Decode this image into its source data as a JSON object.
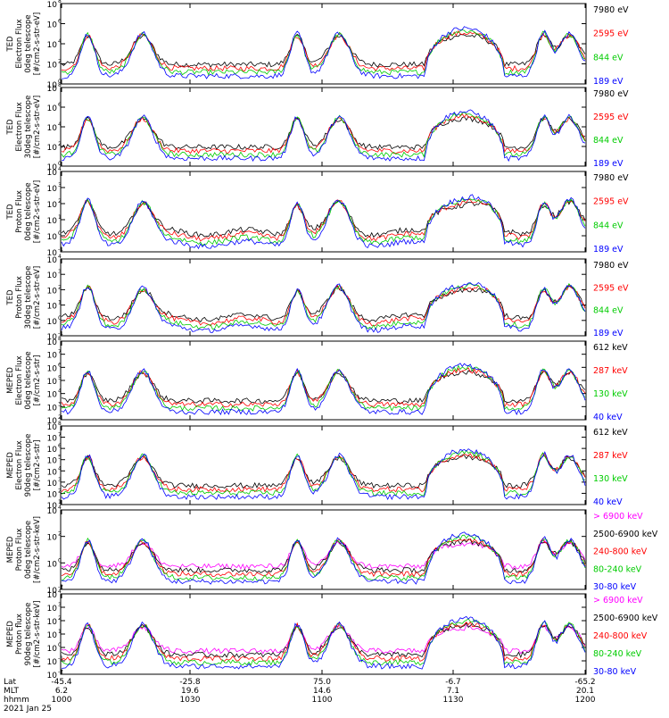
{
  "chart_data": [
    {
      "type": "line",
      "ylabel": [
        "TED",
        "Electron Flux",
        "0deg telescope",
        "[#/cm2-s-str-eV]"
      ],
      "ticks": [
        {
          "l": "10",
          "e": "8"
        },
        {
          "l": "10",
          "e": "6"
        },
        {
          "l": "10",
          "e": "4"
        },
        {
          "l": "10",
          "e": "2"
        },
        {
          "l": "10",
          "e": "0"
        }
      ],
      "series": [
        {
          "name": "7980 eV",
          "color": "#000000"
        },
        {
          "name": "2595 eV",
          "color": "#ff0000"
        },
        {
          "name": "844 eV",
          "color": "#00cc00"
        },
        {
          "name": "189 eV",
          "color": "#0000ff"
        }
      ]
    },
    {
      "type": "line",
      "ylabel": [
        "TED",
        "Electron Flux",
        "30deg telescope",
        "[#/cm2-s-str-eV]"
      ],
      "ticks": [
        {
          "l": "10",
          "e": "8"
        },
        {
          "l": "10",
          "e": "6"
        },
        {
          "l": "10",
          "e": "4"
        },
        {
          "l": "10",
          "e": "2"
        },
        {
          "l": "10",
          "e": "0"
        }
      ],
      "series": [
        {
          "name": "7980 eV",
          "color": "#000000"
        },
        {
          "name": "2595 eV",
          "color": "#ff0000"
        },
        {
          "name": "844 eV",
          "color": "#00cc00"
        },
        {
          "name": "189 eV",
          "color": "#0000ff"
        }
      ]
    },
    {
      "type": "line",
      "ylabel": [
        "TED",
        "Proton Flux",
        "0deg telescope",
        "[#/cm2-s-str-eV]"
      ],
      "ticks": [
        {
          "l": "10",
          "e": "4"
        },
        {
          "l": "10",
          "e": "3"
        },
        {
          "l": "10",
          "e": "2"
        },
        {
          "l": "10",
          "e": "1"
        },
        {
          "l": "10",
          "e": "0"
        },
        {
          "l": "10",
          "e": "-1"
        }
      ],
      "series": [
        {
          "name": "7980 eV",
          "color": "#000000"
        },
        {
          "name": "2595 eV",
          "color": "#ff0000"
        },
        {
          "name": "844 eV",
          "color": "#00cc00"
        },
        {
          "name": "189 eV",
          "color": "#0000ff"
        }
      ]
    },
    {
      "type": "line",
      "ylabel": [
        "TED",
        "Proton Flux",
        "30deg telescope",
        "[#/cm2-s-str-eV]"
      ],
      "ticks": [
        {
          "l": "10",
          "e": "4"
        },
        {
          "l": "10",
          "e": "3"
        },
        {
          "l": "10",
          "e": "2"
        },
        {
          "l": "10",
          "e": "1"
        },
        {
          "l": "10",
          "e": "0"
        },
        {
          "l": "10",
          "e": "-1"
        }
      ],
      "series": [
        {
          "name": "7980 eV",
          "color": "#000000"
        },
        {
          "name": "2595 eV",
          "color": "#ff0000"
        },
        {
          "name": "844 eV",
          "color": "#00cc00"
        },
        {
          "name": "189 eV",
          "color": "#0000ff"
        }
      ]
    },
    {
      "type": "line",
      "ylabel": [
        "MEPED",
        "Electron Flux",
        "0deg telescope",
        "[#/cm2-s-str]"
      ],
      "ticks": [
        {
          "l": "10",
          "e": "8"
        },
        {
          "l": "10",
          "e": "7"
        },
        {
          "l": "10",
          "e": "6"
        },
        {
          "l": "10",
          "e": "5"
        },
        {
          "l": "10",
          "e": "4"
        },
        {
          "l": "10",
          "e": "3"
        },
        {
          "l": "10",
          "e": "2"
        }
      ],
      "series": [
        {
          "name": "612 keV",
          "color": "#000000"
        },
        {
          "name": "287 keV",
          "color": "#ff0000"
        },
        {
          "name": "130 keV",
          "color": "#00cc00"
        },
        {
          "name": "40 keV",
          "color": "#0000ff"
        }
      ]
    },
    {
      "type": "line",
      "ylabel": [
        "MEPED",
        "Electron Flux",
        "90deg telescope",
        "[#/cm2-s-str]"
      ],
      "ticks": [
        {
          "l": "10",
          "e": "8"
        },
        {
          "l": "10",
          "e": "7"
        },
        {
          "l": "10",
          "e": "6"
        },
        {
          "l": "10",
          "e": "5"
        },
        {
          "l": "10",
          "e": "4"
        },
        {
          "l": "10",
          "e": "3"
        },
        {
          "l": "10",
          "e": "2"
        },
        {
          "l": "10",
          "e": "1"
        }
      ],
      "series": [
        {
          "name": "612 keV",
          "color": "#000000"
        },
        {
          "name": "287 keV",
          "color": "#ff0000"
        },
        {
          "name": "130 keV",
          "color": "#00cc00"
        },
        {
          "name": "40 keV",
          "color": "#0000ff"
        }
      ]
    },
    {
      "type": "line",
      "ylabel": [
        "MEPED",
        "Proton Flux",
        "0deg telescope",
        "[#/cm2-s-str-keV]"
      ],
      "ticks": [
        {
          "l": "10",
          "e": "4"
        },
        {
          "l": "10",
          "e": "2"
        },
        {
          "l": "10",
          "e": "0"
        },
        {
          "l": "10",
          "e": "-2"
        }
      ],
      "series": [
        {
          "name": "> 6900 keV",
          "color": "#ff00ff"
        },
        {
          "name": "2500-6900 keV",
          "color": "#000000"
        },
        {
          "name": "240-800 keV",
          "color": "#ff0000"
        },
        {
          "name": "80-240 keV",
          "color": "#00cc00"
        },
        {
          "name": "30-80 keV",
          "color": "#0000ff"
        }
      ]
    },
    {
      "type": "line",
      "ylabel": [
        "MEPED",
        "Proton flux",
        "90deg telescope",
        "[#/cm2-s-str-keV]"
      ],
      "ticks": [
        {
          "l": "10",
          "e": "4"
        },
        {
          "l": "10",
          "e": "3"
        },
        {
          "l": "10",
          "e": "2"
        },
        {
          "l": "10",
          "e": "1"
        },
        {
          "l": "10",
          "e": "0"
        },
        {
          "l": "10",
          "e": "-1"
        },
        {
          "l": "10",
          "e": "-2"
        }
      ],
      "series": [
        {
          "name": "> 6900 keV",
          "color": "#ff00ff"
        },
        {
          "name": "2500-6900 keV",
          "color": "#000000"
        },
        {
          "name": "240-800 keV",
          "color": "#ff0000"
        },
        {
          "name": "80-240 keV",
          "color": "#00cc00"
        },
        {
          "name": "30-80 keV",
          "color": "#0000ff"
        }
      ]
    }
  ],
  "xaxis": {
    "row_labels": [
      "Lat",
      "MLT",
      "hhmm"
    ],
    "date": "2021 Jan 25",
    "columns": [
      {
        "lat": "-45.4",
        "mlt": "6.2",
        "hhmm": "1000"
      },
      {
        "lat": "-25.8",
        "mlt": "19.6",
        "hhmm": "1030"
      },
      {
        "lat": "75.0",
        "mlt": "14.6",
        "hhmm": "1100"
      },
      {
        "lat": "-6.7",
        "mlt": "7.1",
        "hhmm": "1130"
      },
      {
        "lat": "-65.2",
        "mlt": "20.1",
        "hhmm": "1200"
      }
    ]
  }
}
